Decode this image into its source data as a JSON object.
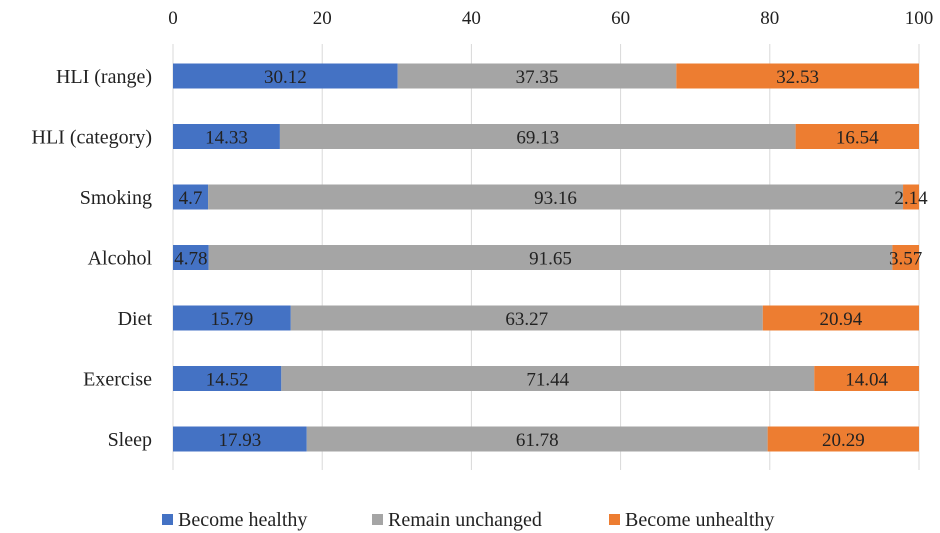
{
  "chart_data": {
    "type": "bar",
    "orientation": "horizontal",
    "stacked": true,
    "title": "",
    "xlabel": "",
    "ylabel": "",
    "xlim": [
      0,
      100
    ],
    "x_ticks": [
      0,
      20,
      40,
      60,
      80,
      100
    ],
    "x_axis_position": "top",
    "grid": true,
    "legend_position": "bottom",
    "categories": [
      "HLI (range)",
      "HLI (category)",
      "Smoking",
      "Alcohol",
      "Diet",
      "Exercise",
      "Sleep"
    ],
    "series": [
      {
        "name": "Become healthy",
        "color": "#4472C4",
        "values": [
          30.12,
          14.33,
          4.7,
          4.78,
          15.79,
          14.52,
          17.93
        ]
      },
      {
        "name": "Remain unchanged",
        "color": "#A5A5A5",
        "values": [
          37.35,
          69.13,
          93.16,
          91.65,
          63.27,
          71.44,
          61.78
        ]
      },
      {
        "name": "Become unhealthy",
        "color": "#ED7D31",
        "values": [
          32.53,
          16.54,
          2.14,
          3.57,
          20.94,
          14.04,
          20.29
        ]
      }
    ]
  }
}
